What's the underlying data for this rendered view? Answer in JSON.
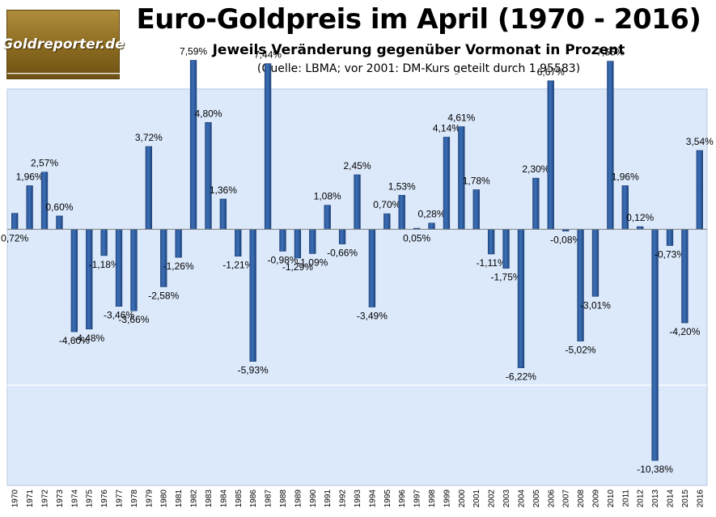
{
  "header": {
    "logo_text": "Goldreporter.de",
    "title": "Euro-Goldpreis im April (1970 - 2016)",
    "subtitle": "Jeweils Veränderung gegenüber Vormonat in Prozent",
    "source": "(Quelle: LBMA; vor 2001: DM-Kurs geteilt durch 1,95583)"
  },
  "colors": {
    "plot_background": "#dce9fb",
    "bar": "#3c6fb6",
    "gridline": "#ffffff"
  },
  "chart_data": {
    "type": "bar",
    "title": "Euro-Goldpreis im April (1970 - 2016)",
    "subtitle": "Jeweils Veränderung gegenüber Vormonat in Prozent",
    "xlabel": "",
    "ylabel": "",
    "ylim": [
      -11.5,
      6.3
    ],
    "grid": true,
    "legend": "none",
    "categories": [
      "1970",
      "1971",
      "1972",
      "1973",
      "1974",
      "1975",
      "1976",
      "1977",
      "1978",
      "1979",
      "1980",
      "1981",
      "1982",
      "1983",
      "1984",
      "1985",
      "1986",
      "1987",
      "1988",
      "1989",
      "1990",
      "1991",
      "1992",
      "1993",
      "1994",
      "1995",
      "1996",
      "1997",
      "1998",
      "1999",
      "2000",
      "2001",
      "2002",
      "2003",
      "2004",
      "2005",
      "2006",
      "2007",
      "2008",
      "2009",
      "2010",
      "2011",
      "2012",
      "2013",
      "2014",
      "2015",
      "2016"
    ],
    "values": [
      0.72,
      1.96,
      2.57,
      0.6,
      -4.6,
      -4.48,
      -1.18,
      -3.46,
      -3.66,
      3.72,
      -2.58,
      -1.26,
      7.59,
      4.8,
      1.36,
      -1.21,
      -5.93,
      7.44,
      -0.98,
      -1.29,
      -1.09,
      1.08,
      -0.66,
      2.45,
      -3.49,
      0.7,
      1.53,
      0.05,
      0.28,
      4.14,
      4.61,
      1.78,
      -1.11,
      -1.75,
      -6.22,
      2.3,
      6.67,
      -0.08,
      -5.02,
      -3.01,
      7.55,
      1.96,
      0.12,
      -10.38,
      -0.73,
      -4.2,
      3.54
    ],
    "data_labels": [
      "0,72%",
      "1,96%",
      "2,57%",
      "0,60%",
      "-4,60%",
      "-4,48%",
      "-1,18%",
      "-3,46%",
      "-3,66%",
      "3,72%",
      "-2,58%",
      "-1,26%",
      "7,59%",
      "4,80%",
      "1,36%",
      "-1,21%",
      "-5,93%",
      "7,44%",
      "-0,98%",
      "-1,29%",
      "-1,09%",
      "1,08%",
      "-0,66%",
      "2,45%",
      "-3,49%",
      "0,70%",
      "1,53%",
      "0,05%",
      "0,28%",
      "4,14%",
      "4,61%",
      "1,78%",
      "-1,11%",
      "-1,75%",
      "-6,22%",
      "2,30%",
      "6,67%",
      "-0,08%",
      "-5,02%",
      "-3,01%",
      "7,55%",
      "1,96%",
      "0,12%",
      "-10,38%",
      "-0,73%",
      "-4,20%",
      "3,54%"
    ],
    "gridlines_at": [
      -7,
      0,
      7
    ]
  }
}
